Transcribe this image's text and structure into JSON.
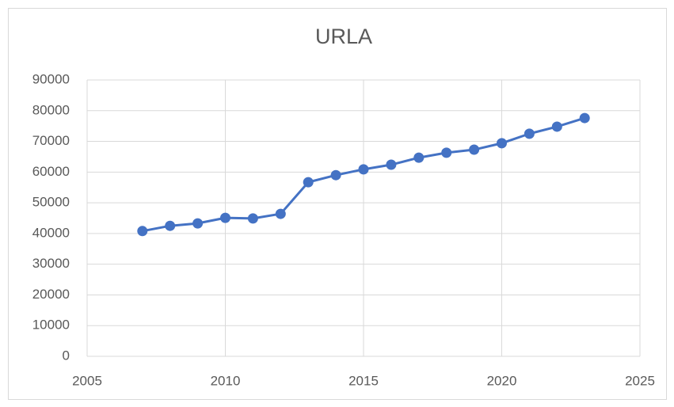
{
  "chart_data": {
    "type": "line",
    "title": "URLA",
    "x": [
      2007,
      2008,
      2009,
      2010,
      2011,
      2012,
      2013,
      2014,
      2015,
      2016,
      2017,
      2018,
      2019,
      2020,
      2021,
      2022,
      2023
    ],
    "series": [
      {
        "name": "URLA",
        "color": "#4472c4",
        "values": [
          40800,
          42500,
          43300,
          45100,
          44900,
          46400,
          56700,
          59000,
          60900,
          62400,
          64700,
          66300,
          67300,
          69400,
          72500,
          74800,
          77600
        ]
      }
    ],
    "xlim": [
      2005,
      2025
    ],
    "xticks": [
      2005,
      2010,
      2015,
      2020,
      2025
    ],
    "ylim": [
      0,
      90000
    ],
    "yticks": [
      0,
      10000,
      20000,
      30000,
      40000,
      50000,
      60000,
      70000,
      80000,
      90000
    ],
    "grid": true
  }
}
